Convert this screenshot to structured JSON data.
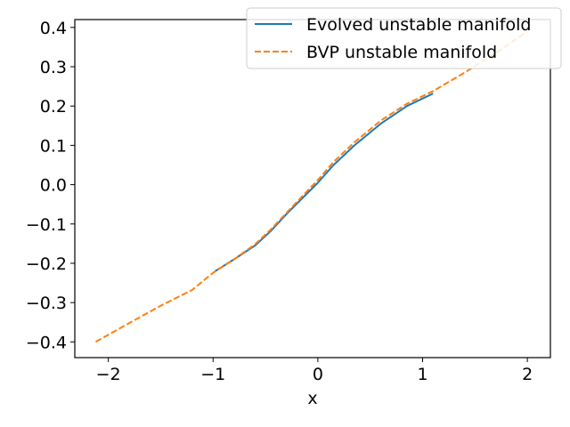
{
  "chart_data": {
    "type": "line",
    "title": "",
    "xlabel": "x",
    "ylabel": "",
    "xlim": [
      -2.32,
      2.22
    ],
    "ylim": [
      -0.44,
      0.42
    ],
    "xticks": [
      -2,
      -1,
      0,
      1,
      2
    ],
    "xtick_labels": [
      "−2",
      "−1",
      "0",
      "1",
      "2"
    ],
    "yticks": [
      -0.4,
      -0.3,
      -0.2,
      -0.1,
      0.0,
      0.1,
      0.2,
      0.3,
      0.4
    ],
    "ytick_labels": [
      "−0.4",
      "−0.3",
      "−0.2",
      "−0.1",
      "0.0",
      "0.1",
      "0.2",
      "0.3",
      "0.4"
    ],
    "grid": false,
    "legend_position": "top-right",
    "series": [
      {
        "name": "Evolved unstable manifold",
        "color": "#1f77b4",
        "style": "solid",
        "x": [
          -0.98,
          -0.8,
          -0.6,
          -0.45,
          -0.3,
          -0.15,
          0.0,
          0.15,
          0.35,
          0.6,
          0.85,
          1.1
        ],
        "y": [
          -0.22,
          -0.19,
          -0.155,
          -0.118,
          -0.075,
          -0.035,
          0.005,
          0.05,
          0.1,
          0.155,
          0.2,
          0.232
        ]
      },
      {
        "name": "BVP unstable manifold",
        "color": "#ff7f0e",
        "style": "dashed",
        "x": [
          -2.12,
          -1.8,
          -1.5,
          -1.2,
          -1.0,
          -0.8,
          -0.6,
          -0.45,
          -0.3,
          -0.15,
          0.0,
          0.15,
          0.35,
          0.6,
          0.85,
          1.1,
          1.4,
          1.7,
          2.0
        ],
        "y": [
          -0.4,
          -0.352,
          -0.308,
          -0.268,
          -0.224,
          -0.19,
          -0.152,
          -0.114,
          -0.072,
          -0.03,
          0.012,
          0.058,
          0.108,
          0.163,
          0.206,
          0.238,
          0.285,
          0.335,
          0.39
        ]
      }
    ]
  }
}
